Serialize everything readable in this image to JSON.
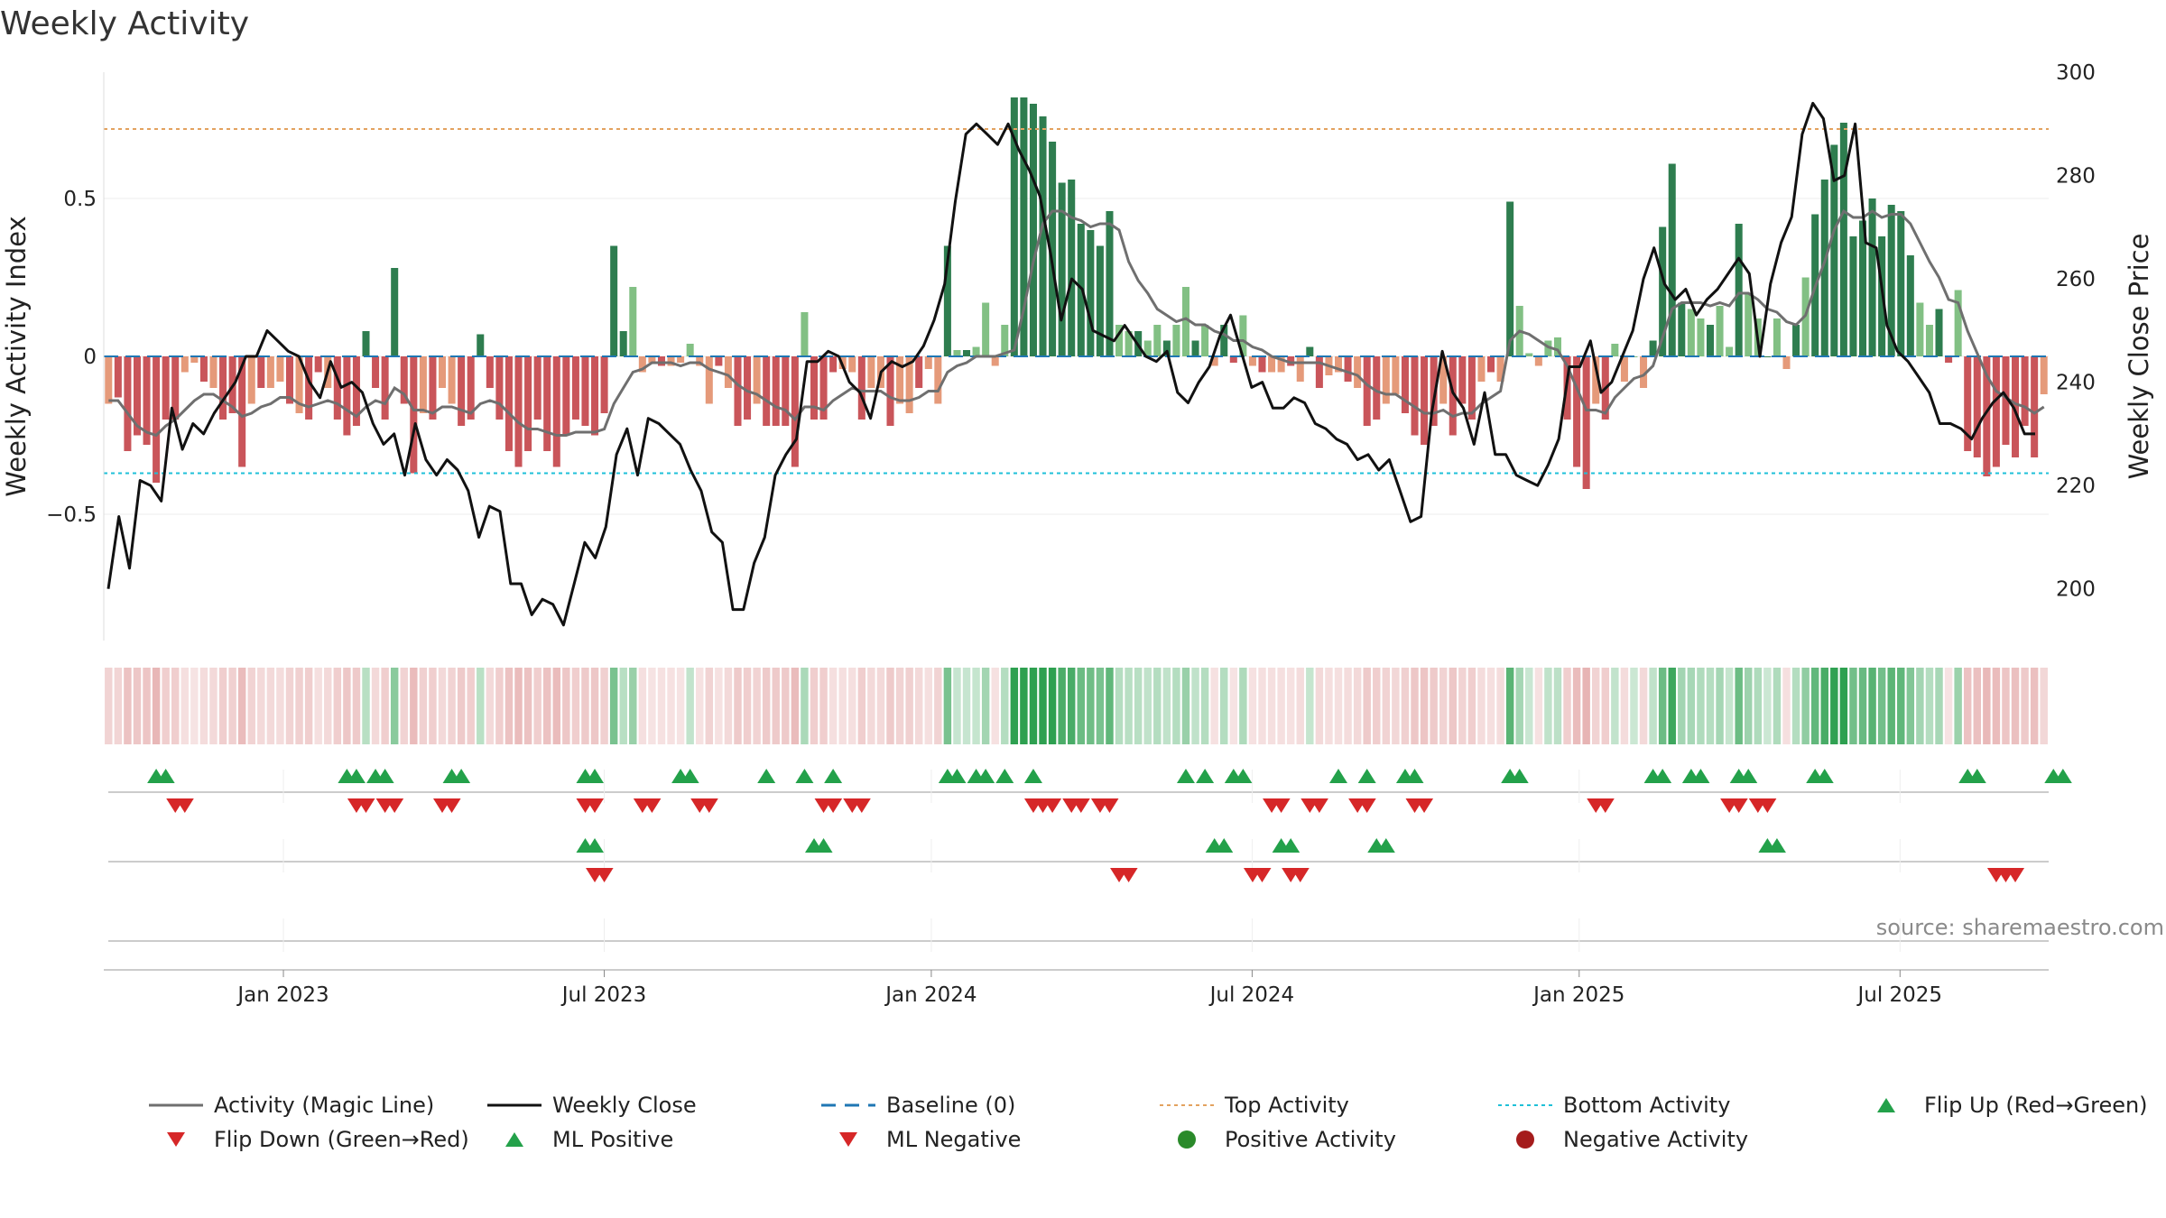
{
  "title": "Weekly Activity",
  "source": "source: sharemaestro.com",
  "colors": {
    "pos_strong": "#2e7d4f",
    "pos_light": "#82c084",
    "neg_strong": "#c9555a",
    "neg_light": "#e59a7a",
    "magic": "#6f6f6f",
    "close": "#111111",
    "baseline": "#1f77b4",
    "top": "#e3a25f",
    "bottom": "#1fc0d8",
    "up": "#23a14a",
    "down": "#d62728",
    "pos_dot": "#2a8a2a",
    "neg_dot": "#a51c1c"
  },
  "chart_data": {
    "type": "bar",
    "title": "Weekly Activity",
    "ylabel": "Weekly Activity Index",
    "y2label": "Weekly Close Price",
    "ylim": [
      -0.9,
      0.9
    ],
    "y2lim": [
      190,
      300
    ],
    "yticks": [
      {
        "v": 0.5,
        "label": "0.5"
      },
      {
        "v": 0,
        "label": "0"
      },
      {
        "v": -0.5,
        "label": "−0.5"
      }
    ],
    "y2ticks": [
      {
        "v": 300,
        "label": "300"
      },
      {
        "v": 280,
        "label": "280"
      },
      {
        "v": 260,
        "label": "260"
      },
      {
        "v": 240,
        "label": "240"
      },
      {
        "v": 220,
        "label": "220"
      },
      {
        "v": 200,
        "label": "200"
      }
    ],
    "x_start_week": 0,
    "x_end_week": 157,
    "xticks": [
      {
        "label": "Jan 2023",
        "week": 14.5
      },
      {
        "label": "Jul 2023",
        "week": 40.4
      },
      {
        "label": "Jan 2024",
        "week": 66.8
      },
      {
        "label": "Jul 2024",
        "week": 92.7
      },
      {
        "label": "Jan 2025",
        "week": 119.1
      },
      {
        "label": "Jul 2025",
        "week": 145.0
      }
    ],
    "top_activity": 0.72,
    "bottom_activity": -0.37,
    "baseline": 0,
    "activity": [
      -0.15,
      -0.13,
      -0.3,
      -0.25,
      -0.28,
      -0.4,
      -0.2,
      -0.2,
      -0.05,
      -0.02,
      -0.08,
      -0.1,
      -0.2,
      -0.18,
      -0.35,
      -0.15,
      -0.1,
      -0.1,
      -0.08,
      -0.15,
      -0.18,
      -0.2,
      -0.05,
      -0.1,
      -0.2,
      -0.25,
      -0.22,
      0.08,
      -0.1,
      -0.2,
      0.28,
      -0.15,
      -0.37,
      -0.18,
      -0.2,
      -0.1,
      -0.15,
      -0.22,
      -0.2,
      0.07,
      -0.1,
      -0.2,
      -0.3,
      -0.35,
      -0.3,
      -0.2,
      -0.3,
      -0.35,
      -0.25,
      -0.2,
      -0.22,
      -0.25,
      -0.18,
      0.35,
      0.08,
      0.22,
      -0.05,
      -0.02,
      -0.03,
      -0.03,
      -0.02,
      0.04,
      -0.03,
      -0.15,
      -0.03,
      -0.1,
      -0.22,
      -0.2,
      -0.15,
      -0.22,
      -0.22,
      -0.22,
      -0.35,
      0.14,
      -0.2,
      -0.2,
      -0.05,
      -0.04,
      -0.05,
      -0.2,
      -0.1,
      -0.1,
      -0.22,
      -0.15,
      -0.18,
      -0.1,
      -0.04,
      -0.15,
      0.35,
      0.02,
      0.02,
      0.03,
      0.17,
      -0.03,
      0.1,
      0.82,
      0.82,
      0.8,
      0.76,
      0.68,
      0.55,
      0.56,
      0.42,
      0.4,
      0.35,
      0.46,
      0.1,
      0.08,
      0.08,
      0.05,
      0.1,
      0.05,
      0.1,
      0.22,
      0.05,
      0.1,
      -0.03,
      0.1,
      -0.02,
      0.13,
      -0.03,
      -0.05,
      -0.05,
      -0.05,
      -0.03,
      -0.08,
      0.03,
      -0.1,
      -0.06,
      -0.05,
      -0.08,
      -0.1,
      -0.22,
      -0.2,
      -0.15,
      -0.12,
      -0.18,
      -0.25,
      -0.28,
      -0.22,
      -0.15,
      -0.25,
      -0.15,
      -0.2,
      -0.08,
      -0.05,
      -0.08,
      0.49,
      0.16,
      0.01,
      -0.03,
      0.05,
      0.06,
      -0.2,
      -0.35,
      -0.42,
      -0.15,
      -0.2,
      0.04,
      -0.08,
      0.0,
      -0.1,
      0.05,
      0.41,
      0.61,
      0.17,
      0.15,
      0.12,
      0.1,
      0.16,
      0.03,
      0.42,
      0.2,
      0.12,
      0.0,
      0.12,
      -0.04,
      0.1,
      0.25,
      0.45,
      0.56,
      0.67,
      0.74,
      0.38,
      0.43,
      0.5,
      0.38,
      0.48,
      0.46,
      0.32,
      0.17,
      0.1,
      0.15,
      -0.02,
      0.21,
      -0.3,
      -0.32,
      -0.38,
      -0.35,
      -0.28,
      -0.32,
      -0.22,
      -0.32,
      -0.12
    ],
    "magic_line": [
      -0.14,
      -0.14,
      -0.18,
      -0.22,
      -0.24,
      -0.25,
      -0.22,
      -0.2,
      -0.17,
      -0.14,
      -0.12,
      -0.12,
      -0.14,
      -0.16,
      -0.19,
      -0.18,
      -0.16,
      -0.15,
      -0.13,
      -0.13,
      -0.15,
      -0.16,
      -0.15,
      -0.14,
      -0.15,
      -0.17,
      -0.19,
      -0.16,
      -0.14,
      -0.15,
      -0.1,
      -0.12,
      -0.17,
      -0.17,
      -0.18,
      -0.16,
      -0.16,
      -0.17,
      -0.18,
      -0.15,
      -0.14,
      -0.15,
      -0.18,
      -0.21,
      -0.23,
      -0.23,
      -0.24,
      -0.25,
      -0.25,
      -0.24,
      -0.24,
      -0.24,
      -0.23,
      -0.15,
      -0.1,
      -0.05,
      -0.04,
      -0.02,
      -0.02,
      -0.02,
      -0.03,
      -0.02,
      -0.02,
      -0.04,
      -0.05,
      -0.06,
      -0.09,
      -0.11,
      -0.12,
      -0.14,
      -0.16,
      -0.17,
      -0.2,
      -0.16,
      -0.16,
      -0.17,
      -0.14,
      -0.12,
      -0.1,
      -0.11,
      -0.11,
      -0.11,
      -0.13,
      -0.14,
      -0.14,
      -0.13,
      -0.11,
      -0.11,
      -0.05,
      -0.03,
      -0.02,
      0.0,
      0.0,
      0.0,
      0.01,
      0.02,
      0.15,
      0.3,
      0.42,
      0.46,
      0.46,
      0.44,
      0.43,
      0.41,
      0.42,
      0.42,
      0.4,
      0.3,
      0.24,
      0.2,
      0.15,
      0.13,
      0.11,
      0.12,
      0.1,
      0.1,
      0.08,
      0.07,
      0.05,
      0.05,
      0.03,
      0.02,
      0.0,
      -0.01,
      -0.02,
      -0.02,
      -0.02,
      -0.02,
      -0.03,
      -0.04,
      -0.05,
      -0.06,
      -0.09,
      -0.11,
      -0.12,
      -0.12,
      -0.14,
      -0.16,
      -0.18,
      -0.18,
      -0.17,
      -0.19,
      -0.18,
      -0.18,
      -0.15,
      -0.13,
      -0.11,
      0.05,
      0.08,
      0.07,
      0.05,
      0.03,
      0.02,
      -0.03,
      -0.1,
      -0.17,
      -0.17,
      -0.18,
      -0.13,
      -0.1,
      -0.07,
      -0.06,
      -0.03,
      0.06,
      0.15,
      0.17,
      0.17,
      0.17,
      0.16,
      0.17,
      0.16,
      0.2,
      0.2,
      0.18,
      0.15,
      0.14,
      0.11,
      0.1,
      0.13,
      0.22,
      0.3,
      0.4,
      0.46,
      0.44,
      0.44,
      0.46,
      0.44,
      0.45,
      0.45,
      0.42,
      0.36,
      0.3,
      0.25,
      0.18,
      0.17,
      0.08,
      0.01,
      -0.06,
      -0.11,
      -0.13,
      -0.15,
      -0.16,
      -0.18,
      -0.16
    ],
    "weekly_close": [
      200,
      214,
      204,
      221,
      220,
      217,
      235,
      227,
      232,
      230,
      234,
      237,
      240,
      245,
      245,
      250,
      248,
      246,
      245,
      240,
      237,
      244,
      239,
      240,
      238,
      232,
      228,
      230,
      222,
      232,
      225,
      222,
      225,
      223,
      219,
      210,
      216,
      215,
      201,
      201,
      195,
      198,
      197,
      193,
      201,
      209,
      206,
      212,
      226,
      231,
      222,
      233,
      232,
      230,
      228,
      223,
      219,
      211,
      209,
      196,
      196,
      205,
      210,
      222,
      226,
      229,
      244,
      244,
      246,
      245,
      240,
      238,
      233,
      242,
      244,
      243,
      244,
      247,
      252,
      259,
      275,
      288,
      290,
      288,
      286,
      290,
      285,
      281,
      276,
      265,
      252,
      260,
      258,
      250,
      249,
      248,
      251,
      248,
      245,
      244,
      246,
      238,
      236,
      240,
      243,
      249,
      253,
      246,
      239,
      240,
      235,
      235,
      237,
      236,
      232,
      231,
      229,
      228,
      225,
      226,
      223,
      225,
      219,
      213,
      214,
      234,
      246,
      238,
      235,
      228,
      238,
      226,
      226,
      222,
      221,
      220,
      224,
      229,
      243,
      243,
      248,
      238,
      240,
      245,
      250,
      260,
      266,
      259,
      256,
      258,
      253,
      256,
      258,
      261,
      264,
      261,
      245,
      259,
      267,
      272,
      288,
      294,
      291,
      279,
      280,
      290,
      267,
      266,
      251,
      246,
      244,
      241,
      238,
      232,
      232,
      231,
      229,
      233,
      236,
      238,
      235,
      230,
      230
    ],
    "heat_strip": "daily activity tint per week (green positive, red negative)",
    "signal_rows": [
      {
        "name": "row1",
        "up": [
          5,
          6,
          25,
          26,
          28,
          29,
          36,
          37,
          50,
          51,
          60,
          61,
          69,
          73,
          76,
          88,
          89,
          91,
          92,
          94,
          97,
          113,
          115,
          118,
          119,
          129,
          132,
          136,
          137,
          147,
          148,
          162,
          163,
          166,
          167,
          171,
          172,
          179,
          180,
          195,
          196,
          204,
          205
        ],
        "down": [
          7,
          8,
          26,
          27,
          29,
          30,
          35,
          36,
          50,
          51,
          56,
          57,
          62,
          63,
          75,
          76,
          78,
          79,
          97,
          98,
          99,
          101,
          102,
          104,
          105,
          122,
          123,
          126,
          127,
          131,
          132,
          137,
          138,
          156,
          157,
          170,
          171,
          173,
          174
        ]
      },
      {
        "name": "row2",
        "up": [
          50,
          51,
          74,
          75,
          116,
          117,
          123,
          124,
          133,
          134,
          174,
          175
        ],
        "down": [
          51,
          52,
          106,
          107,
          120,
          121,
          124,
          125,
          198,
          199,
          200
        ]
      },
      {
        "name": "row3",
        "up": [],
        "down": []
      }
    ]
  },
  "legend": [
    {
      "label": "Activity (Magic Line)",
      "kind": "line",
      "color": "#6f6f6f"
    },
    {
      "label": "Weekly Close",
      "kind": "line",
      "color": "#111111"
    },
    {
      "label": "Baseline (0)",
      "kind": "dash",
      "color": "#1f77b4"
    },
    {
      "label": "Top Activity",
      "kind": "dot-line",
      "color": "#e3a25f"
    },
    {
      "label": "Bottom Activity",
      "kind": "dot-line",
      "color": "#1fc0d8"
    },
    {
      "label": "Flip Up (Red→Green)",
      "kind": "tri-up",
      "color": "#23a14a"
    },
    {
      "label": "Flip Down (Green→Red)",
      "kind": "tri-down",
      "color": "#d62728"
    },
    {
      "label": "ML Positive",
      "kind": "tri-up",
      "color": "#23a14a"
    },
    {
      "label": "ML Negative",
      "kind": "tri-down",
      "color": "#d62728"
    },
    {
      "label": "Positive Activity",
      "kind": "dot",
      "color": "#2a8a2a"
    },
    {
      "label": "Negative Activity",
      "kind": "dot",
      "color": "#a51c1c"
    }
  ]
}
